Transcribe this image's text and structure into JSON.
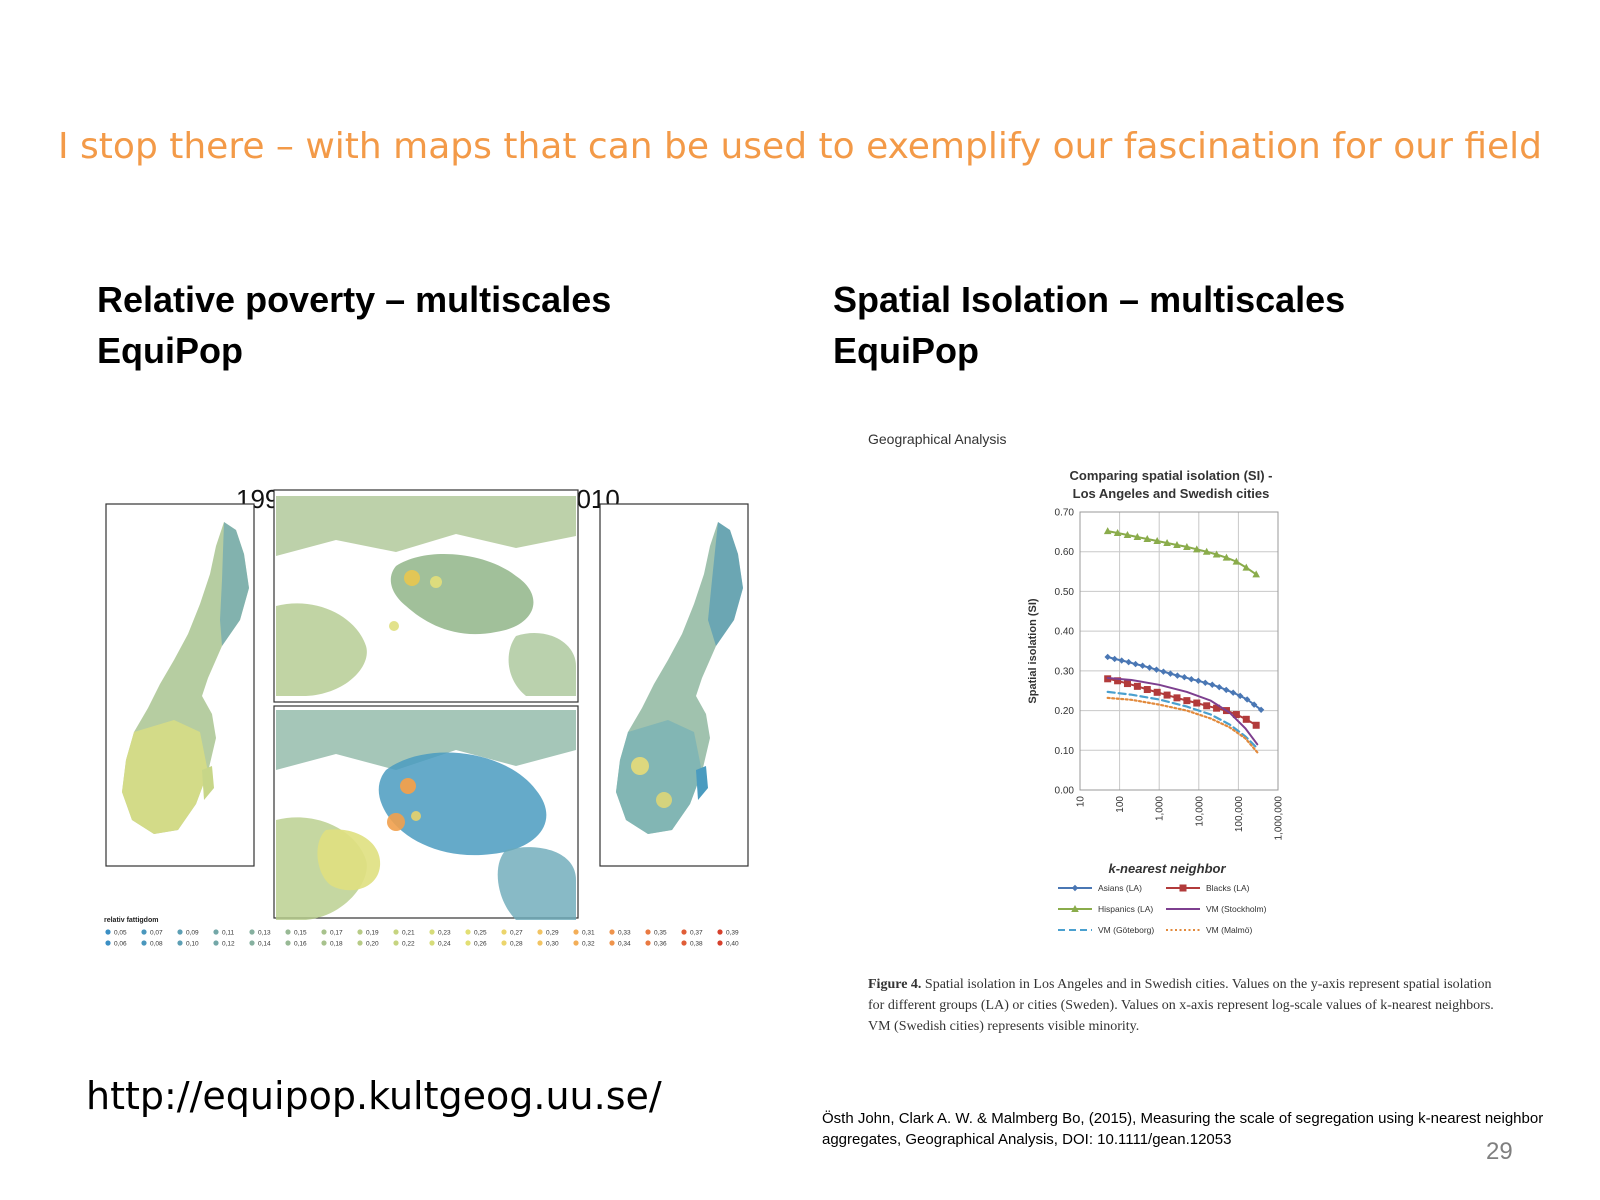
{
  "slide": {
    "title": "I stop there – with maps that can be used to exemplify our fascination for our field",
    "left_heading": [
      "Relative poverty – multiscales",
      "EquiPop"
    ],
    "right_heading": [
      "Spatial Isolation – multiscales",
      "EquiPop"
    ],
    "url": "http://equipop.kultgeog.uu.se/",
    "citation": "Östh John, Clark A. W. & Malmberg Bo, (2015), Measuring the scale of segregation using k-nearest neighbor aggregates, Geographical Analysis, DOI: 10.1111/gean.12053",
    "page_number": "29"
  },
  "maps": {
    "year_left": "1994",
    "year_right": "2010",
    "legend_title": "relativ fattigdom",
    "legend_row1": [
      "0,05",
      "0,07",
      "0,09",
      "0,11",
      "0,13",
      "0,15",
      "0,17",
      "0,19",
      "0,21",
      "0,23",
      "0,25",
      "0,27",
      "0,29",
      "0,31",
      "0,33",
      "0,35",
      "0,37",
      "0,39"
    ],
    "legend_row2": [
      "0,06",
      "0,08",
      "0,10",
      "0,12",
      "0,14",
      "0,16",
      "0,18",
      "0,20",
      "0,22",
      "0,24",
      "0,26",
      "0,28",
      "0,30",
      "0,32",
      "0,34",
      "0,36",
      "0,38",
      "0,40"
    ],
    "legend_colors": [
      "#3b8fc4",
      "#4a97bd",
      "#5d9fb4",
      "#73a7a8",
      "#86b09f",
      "#98b995",
      "#a8c28d",
      "#b7cb86",
      "#c6d480",
      "#d6dc7a",
      "#e2df74",
      "#ecd56c",
      "#f2c463",
      "#f3ae58",
      "#ef944c",
      "#e97a42",
      "#e05d37",
      "#d6402c"
    ],
    "colors": {
      "teal": "#4a9bbf",
      "green": "#9fbf8a",
      "yellow": "#dfe07f",
      "orange": "#f1a04d"
    }
  },
  "figure": {
    "journal": "Geographical Analysis",
    "caption_label": "Figure 4.",
    "caption_text": "Spatial isolation in Los Angeles and in Swedish cities. Values on the y-axis represent spatial isolation for different groups (LA) or cities (Sweden). Values on x-axis represent log-scale values of k-nearest neighbors. VM (Swedish cities) represents visible minority."
  },
  "chart_data": {
    "type": "line",
    "title": "Comparing spatial isolation (SI) - Los Angeles and Swedish cities",
    "title_lines": [
      "Comparing spatial isolation (SI) -",
      "Los Angeles and Swedish cities"
    ],
    "xlabel": "k-nearest neighbor",
    "ylabel": "Spatial isolation (SI)",
    "xscale": "log",
    "xlim": [
      10,
      1000000
    ],
    "ylim": [
      0,
      0.7
    ],
    "xticks": [
      "10",
      "100",
      "1,000",
      "10,000",
      "100,000",
      "1,000,000"
    ],
    "yticks": [
      "0.00",
      "0.10",
      "0.20",
      "0.30",
      "0.40",
      "0.50",
      "0.60",
      "0.70"
    ],
    "grid": true,
    "legend_position": "bottom",
    "series": [
      {
        "name": "Asians (LA)",
        "color": "#4a77b4",
        "marker": "diamond",
        "style": "solid",
        "x": [
          50,
          75,
          113,
          169,
          253,
          380,
          570,
          854,
          1281,
          1922,
          2883,
          4325,
          6487,
          9730,
          14596,
          21894,
          32841,
          49261,
          73892,
          110838,
          166257,
          249386,
          374079
        ],
        "y": [
          0.335,
          0.33,
          0.326,
          0.322,
          0.317,
          0.313,
          0.308,
          0.303,
          0.298,
          0.293,
          0.288,
          0.284,
          0.279,
          0.275,
          0.27,
          0.265,
          0.259,
          0.252,
          0.245,
          0.237,
          0.228,
          0.215,
          0.202
        ]
      },
      {
        "name": "Blacks (LA)",
        "color": "#b23b3b",
        "marker": "square",
        "style": "solid",
        "x": [
          50,
          89,
          158,
          281,
          500,
          889,
          1581,
          2812,
          5000,
          8891,
          15811,
          28117,
          50000,
          88914,
          158114,
          281171
        ],
        "y": [
          0.28,
          0.275,
          0.268,
          0.261,
          0.253,
          0.246,
          0.239,
          0.232,
          0.225,
          0.219,
          0.212,
          0.206,
          0.2,
          0.19,
          0.178,
          0.163
        ]
      },
      {
        "name": "Hispanics (LA)",
        "color": "#8aac4b",
        "marker": "triangle",
        "style": "solid",
        "x": [
          50,
          89,
          158,
          281,
          500,
          889,
          1581,
          2812,
          5000,
          8891,
          15811,
          28117,
          50000,
          88914,
          158114,
          281171
        ],
        "y": [
          0.652,
          0.647,
          0.642,
          0.637,
          0.632,
          0.627,
          0.622,
          0.617,
          0.612,
          0.606,
          0.6,
          0.593,
          0.585,
          0.575,
          0.56,
          0.543
        ]
      },
      {
        "name": "VM (Stockholm)",
        "color": "#7d3f8f",
        "marker": "none",
        "style": "solid",
        "x": [
          50,
          200,
          1000,
          5000,
          20000,
          60000,
          150000,
          300000
        ],
        "y": [
          0.282,
          0.277,
          0.265,
          0.247,
          0.225,
          0.195,
          0.155,
          0.115
        ]
      },
      {
        "name": "VM (Göteborg)",
        "color": "#4aa0cf",
        "marker": "none",
        "style": "dashed",
        "x": [
          50,
          200,
          1000,
          5000,
          20000,
          60000,
          150000,
          300000
        ],
        "y": [
          0.247,
          0.24,
          0.228,
          0.21,
          0.19,
          0.165,
          0.135,
          0.105
        ]
      },
      {
        "name": "VM (Malmö)",
        "color": "#e28a3c",
        "marker": "none",
        "style": "dotted",
        "x": [
          50,
          200,
          1000,
          5000,
          20000,
          60000,
          150000,
          300000
        ],
        "y": [
          0.232,
          0.227,
          0.215,
          0.2,
          0.18,
          0.158,
          0.13,
          0.095
        ]
      }
    ]
  }
}
